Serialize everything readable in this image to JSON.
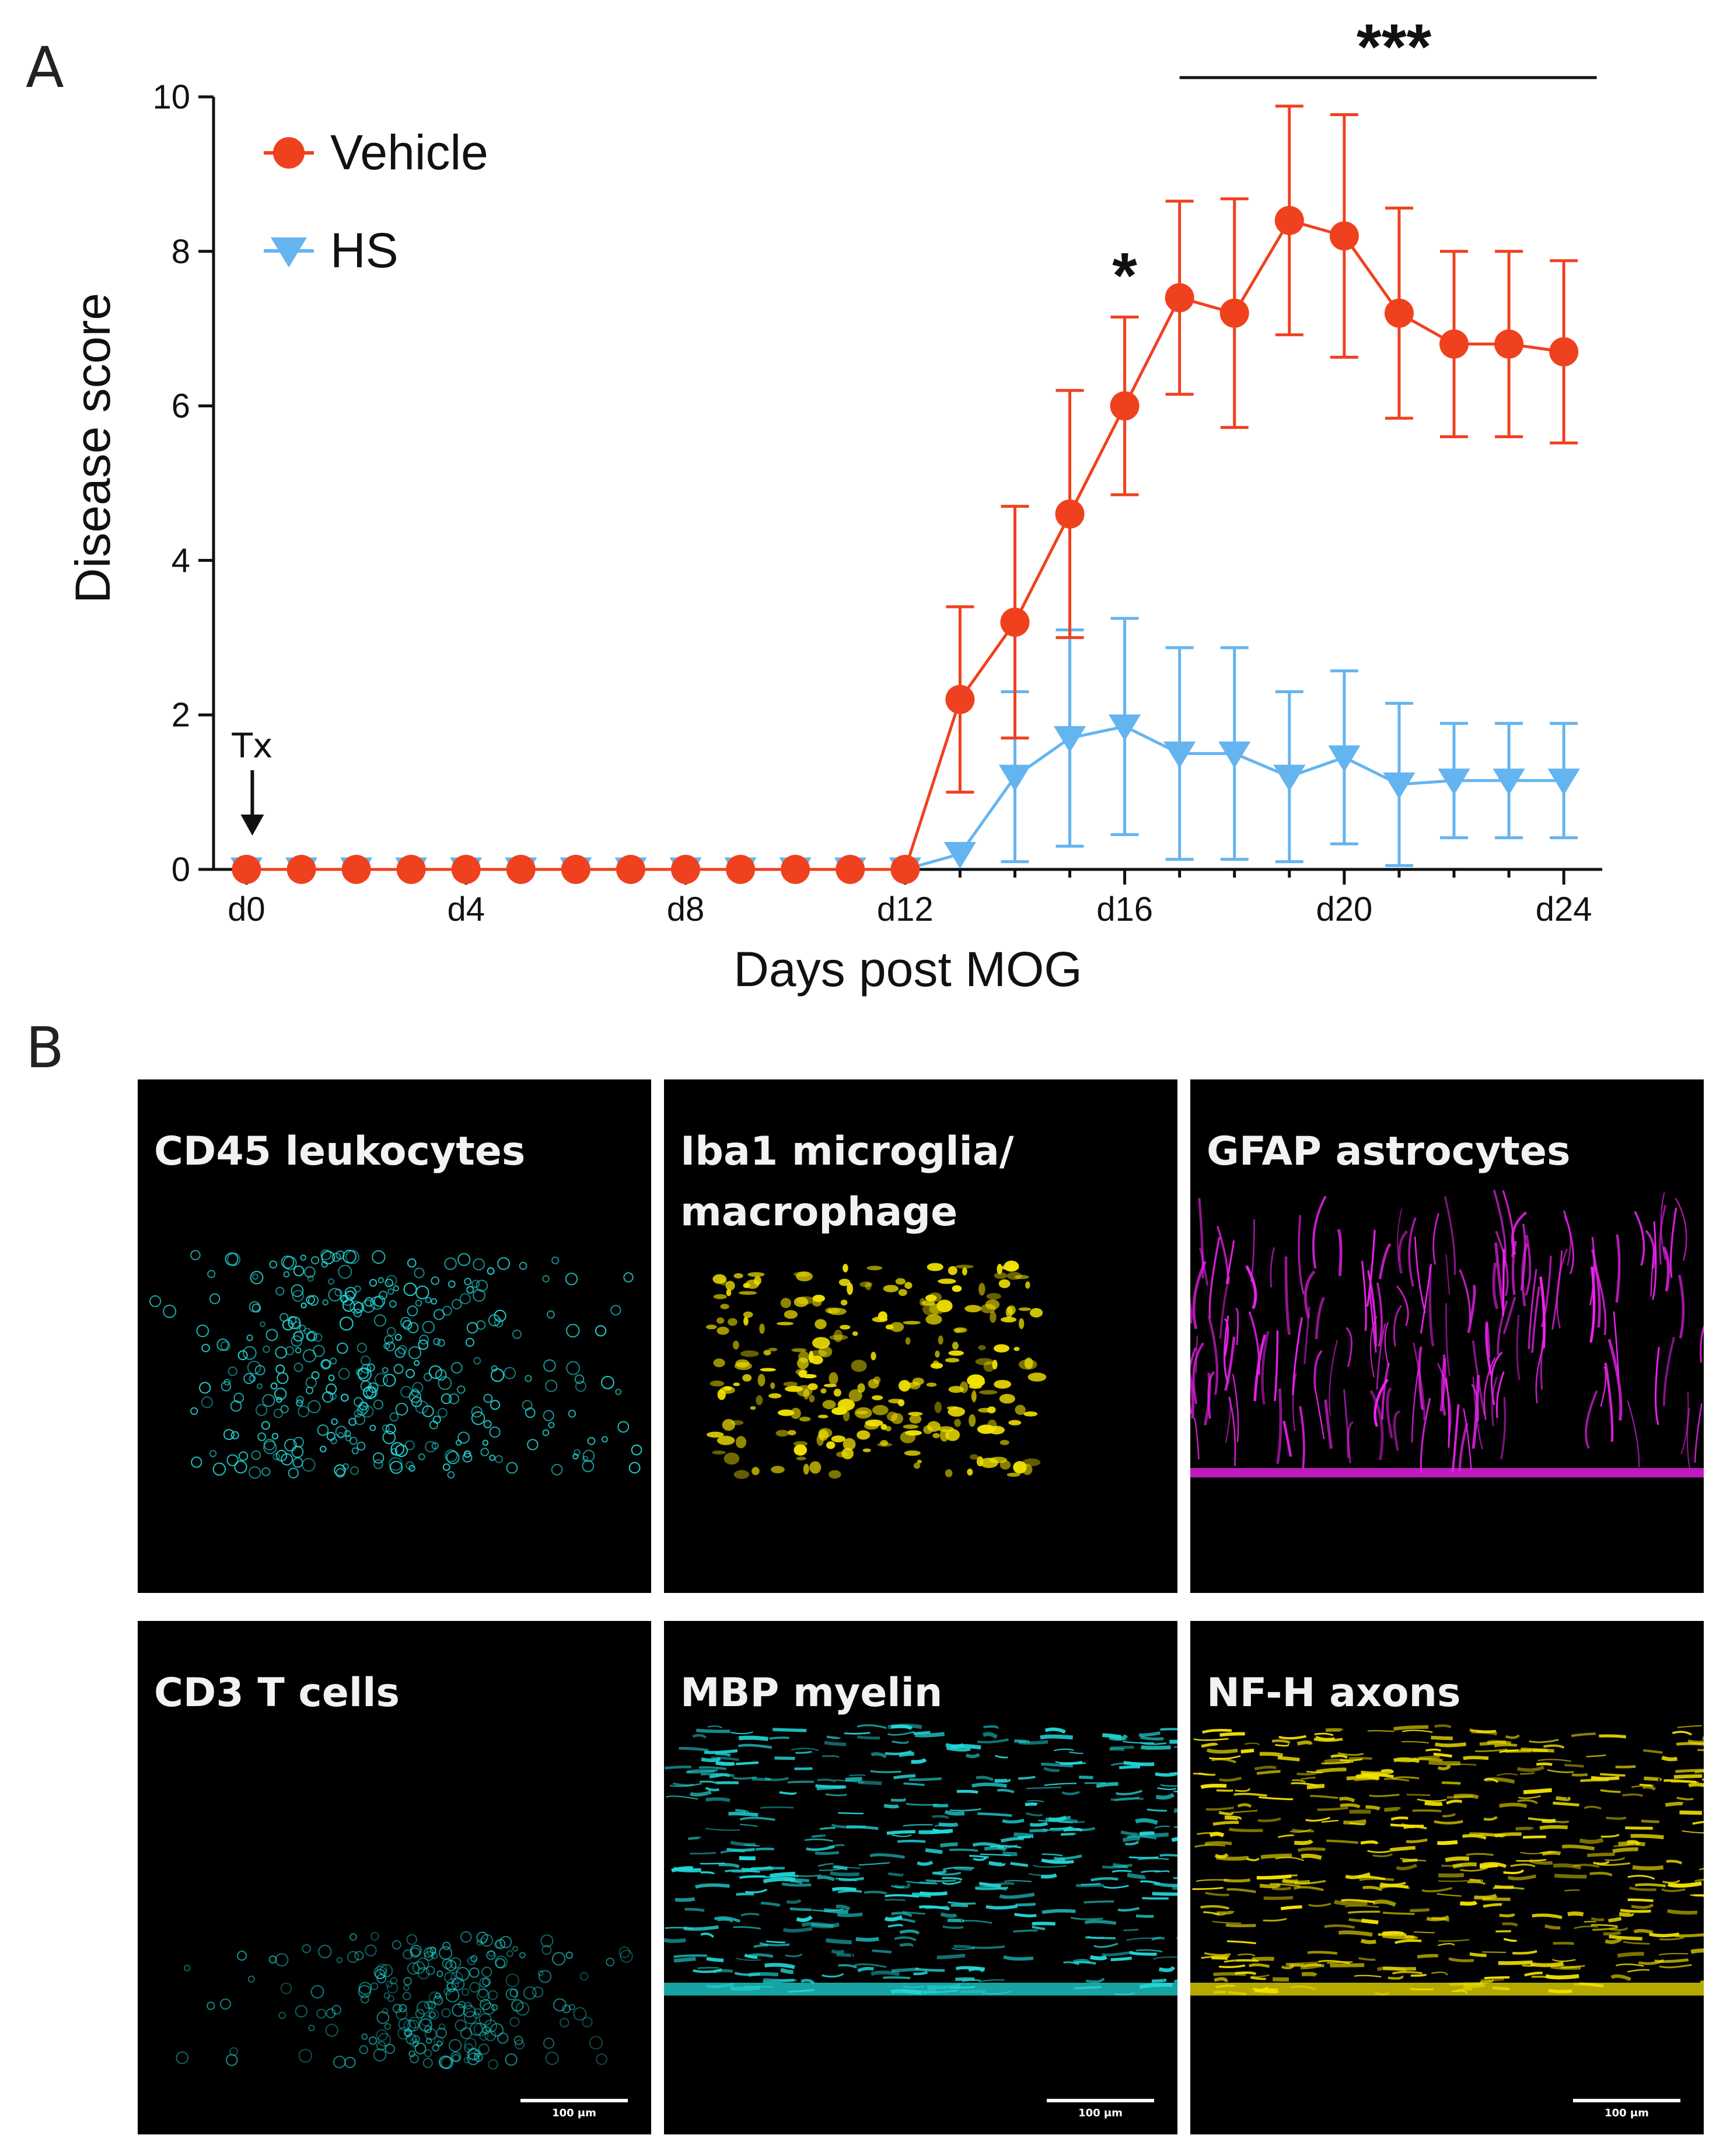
{
  "panel_a_label": "A",
  "panel_b_label": "B",
  "chart_data": {
    "type": "line",
    "title": "",
    "xlabel": "Days post MOG",
    "ylabel": "Disease score",
    "x": [
      0,
      1,
      2,
      3,
      4,
      5,
      6,
      7,
      8,
      9,
      10,
      11,
      12,
      13,
      14,
      15,
      16,
      17,
      18,
      19,
      20,
      21,
      22,
      23,
      24
    ],
    "xlim": [
      -0.6,
      24.7
    ],
    "ylim": [
      0,
      10
    ],
    "x_ticks": [
      0,
      4,
      8,
      12,
      16,
      20,
      24
    ],
    "x_tick_labels": [
      "d0",
      "d4",
      "d8",
      "d12",
      "d16",
      "d20",
      "d24"
    ],
    "y_ticks": [
      0,
      2,
      4,
      6,
      8,
      10
    ],
    "y_tick_labels": [
      "0",
      "2",
      "4",
      "6",
      "8",
      "10"
    ],
    "series": [
      {
        "name": "Vehicle",
        "color": "#f0411f",
        "marker": "circle",
        "values": [
          0,
          0,
          0,
          0,
          0,
          0,
          0,
          0,
          0,
          0,
          0,
          0,
          0,
          2.2,
          3.2,
          4.6,
          6.0,
          7.4,
          7.2,
          8.4,
          8.2,
          7.2,
          6.8,
          6.8,
          6.7
        ],
        "errors": [
          0,
          0,
          0,
          0,
          0,
          0,
          0,
          0,
          0,
          0,
          0,
          0,
          0,
          1.2,
          1.5,
          1.6,
          1.15,
          1.25,
          1.48,
          1.48,
          1.57,
          1.36,
          1.2,
          1.2,
          1.18
        ]
      },
      {
        "name": "HS",
        "color": "#64b4f0",
        "marker": "triangle-down",
        "values": [
          0,
          0,
          0,
          0,
          0,
          0,
          0,
          0,
          0,
          0,
          0,
          0,
          0,
          0.2,
          1.2,
          1.7,
          1.85,
          1.5,
          1.5,
          1.2,
          1.45,
          1.1,
          1.15,
          1.15,
          1.15
        ],
        "errors": [
          0,
          0,
          0,
          0,
          0,
          0,
          0,
          0,
          0,
          0,
          0,
          0,
          0,
          0,
          1.1,
          1.4,
          1.4,
          1.37,
          1.37,
          1.1,
          1.12,
          1.05,
          0.74,
          0.74,
          0.74
        ]
      }
    ],
    "legend": [
      "Vehicle",
      "HS"
    ],
    "legend_position": "top-left",
    "annotations": [
      {
        "text": "Tx",
        "x": 0,
        "note": "treatment start arrow"
      },
      {
        "text": "*",
        "x": 16
      },
      {
        "text": "***",
        "x_from": 17,
        "x_to": 24.6
      }
    ]
  },
  "panels": [
    {
      "label": "CD45 leukocytes",
      "color": "#22d8d8",
      "scale": ""
    },
    {
      "label": "Iba1 microglia/\nmacrophage",
      "color": "#f2e200",
      "scale": ""
    },
    {
      "label": "GFAP astrocytes",
      "color": "#ee22ee",
      "scale": ""
    },
    {
      "label": "CD3 T cells",
      "color": "#22d0d0",
      "scale": "100 μm"
    },
    {
      "label": "MBP myelin",
      "color": "#22d8d8",
      "scale": "100 μm"
    },
    {
      "label": "NF-H axons",
      "color": "#f2e200",
      "scale": "100 μm"
    }
  ]
}
